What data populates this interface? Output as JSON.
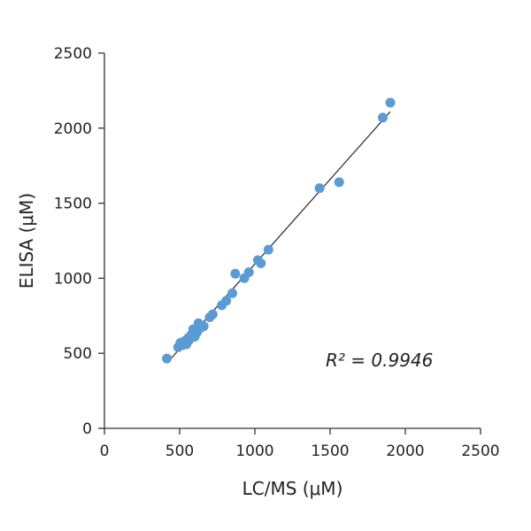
{
  "chart_data": {
    "type": "scatter",
    "xlabel": "LC/MS (μM)",
    "ylabel": "ELISA (μM)",
    "xlim": [
      0,
      2500
    ],
    "ylim": [
      0,
      2500
    ],
    "x_ticks": [
      "0",
      "500",
      "1000",
      "1500",
      "2000",
      "2500"
    ],
    "y_ticks": [
      "0",
      "500",
      "1000",
      "1500",
      "2000",
      "2500"
    ],
    "grid": false,
    "legend": "none",
    "annotation": "R² = 0.9946",
    "colors": {
      "points": "#5b9bd5",
      "fit_line": "#333333",
      "axes": "#333333"
    },
    "fit_line": {
      "x": [
        420,
        1900
      ],
      "y": [
        440,
        2110
      ]
    },
    "series": [
      {
        "x": [
          415,
          490,
          505,
          520,
          530,
          545,
          555,
          565,
          575,
          590,
          600,
          615,
          625,
          640,
          660,
          700,
          720,
          780,
          810,
          850,
          870,
          930,
          960,
          1020,
          1040,
          1090,
          1430,
          1560,
          1850,
          1900
        ],
        "y": [
          465,
          540,
          570,
          555,
          580,
          560,
          600,
          590,
          620,
          660,
          610,
          640,
          700,
          670,
          680,
          740,
          760,
          820,
          850,
          900,
          1030,
          1000,
          1040,
          1120,
          1100,
          1190,
          1600,
          1640,
          2070,
          2170
        ]
      }
    ]
  }
}
